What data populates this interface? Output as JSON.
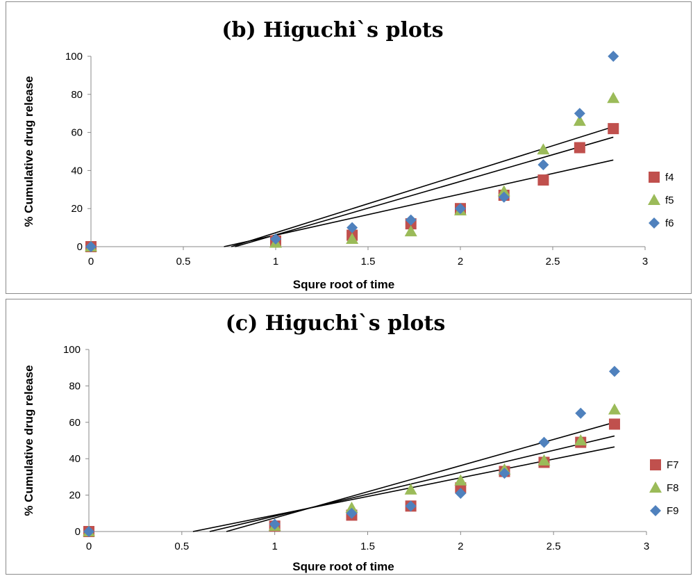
{
  "chart_data": [
    {
      "type": "scatter",
      "title": "(b) Higuchi`s plots",
      "xlabel": "Squre root of time",
      "ylabel": "% Cumulative drug release",
      "xlim": [
        0,
        3
      ],
      "ylim": [
        0,
        100
      ],
      "xticks": [
        "0",
        "0.5",
        "1",
        "1.5",
        "2",
        "2.5",
        "3"
      ],
      "yticks": [
        "0",
        "20",
        "40",
        "60",
        "80",
        "100"
      ],
      "grid": false,
      "legend_position": "right",
      "x": [
        0,
        1,
        1.414,
        1.732,
        2,
        2.236,
        2.449,
        2.646,
        2.828
      ],
      "series": [
        {
          "name": "f4",
          "marker": "square",
          "color": "#c0504d",
          "values": [
            0,
            3,
            6,
            12,
            20,
            27,
            35,
            52,
            62
          ],
          "trendline": {
            "x0": 0.72,
            "x1": 2.828,
            "y1": 45.5
          }
        },
        {
          "name": "f5",
          "marker": "triangle",
          "color": "#9bbb59",
          "values": [
            0,
            2,
            4,
            8,
            19,
            29,
            51,
            66,
            78
          ],
          "trendline": {
            "x0": 0.78,
            "x1": 2.828,
            "y1": 57.5
          }
        },
        {
          "name": "f6",
          "marker": "diamond",
          "color": "#4f81bd",
          "values": [
            0,
            4,
            10,
            14,
            20,
            26,
            43,
            70,
            100
          ],
          "trendline": {
            "x0": 0.76,
            "x1": 2.828,
            "y1": 63
          }
        }
      ]
    },
    {
      "type": "scatter",
      "title": "(c) Higuchi`s plots",
      "xlabel": "Squre root of time",
      "ylabel": "% Cumulative drug release",
      "xlim": [
        0,
        3
      ],
      "ylim": [
        0,
        100
      ],
      "xticks": [
        "0",
        "0.5",
        "1",
        "1.5",
        "2",
        "2.5",
        "3"
      ],
      "yticks": [
        "0",
        "20",
        "40",
        "60",
        "80",
        "100"
      ],
      "grid": false,
      "legend_position": "right",
      "x": [
        0,
        1,
        1.414,
        1.732,
        2,
        2.236,
        2.449,
        2.646,
        2.828
      ],
      "series": [
        {
          "name": "F7",
          "marker": "square",
          "color": "#c0504d",
          "values": [
            0,
            3,
            9,
            14,
            24,
            33,
            38,
            49,
            59
          ],
          "trendline": {
            "x0": 0.56,
            "x1": 2.828,
            "y1": 46.5
          }
        },
        {
          "name": "F8",
          "marker": "triangle",
          "color": "#9bbb59",
          "values": [
            0,
            3,
            13,
            23,
            28,
            34,
            39,
            50,
            67
          ],
          "trendline": {
            "x0": 0.65,
            "x1": 2.828,
            "y1": 52.5
          }
        },
        {
          "name": "F9",
          "marker": "diamond",
          "color": "#4f81bd",
          "values": [
            0,
            4,
            10,
            14,
            21,
            32,
            49,
            65,
            88
          ],
          "trendline": {
            "x0": 0.74,
            "x1": 2.828,
            "y1": 60
          }
        }
      ]
    }
  ]
}
